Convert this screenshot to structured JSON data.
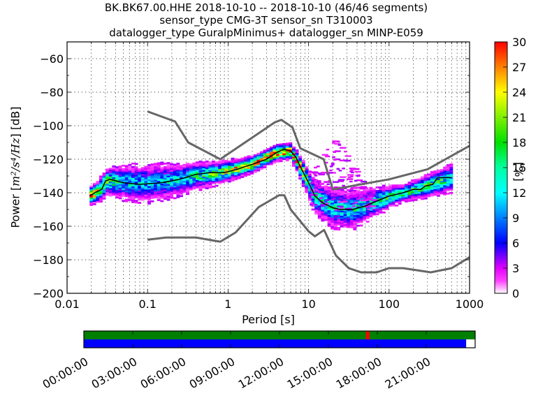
{
  "title": {
    "line1": "BK.BK67.00.HHE   2018-10-10 -- 2018-10-10  (46/46 segments)",
    "line2": "sensor_type CMG-3T sensor_sn T310003",
    "line3": "datalogger_type GuralpMinimus+ datalogger_sn MINP-E059"
  },
  "chart_data": {
    "type": "heatmap",
    "title": "BK.BK67.00.HHE   2018-10-10 -- 2018-10-10  (46/46 segments)",
    "xlabel": "Period [s]",
    "ylabel_prefix": "Power [",
    "ylabel_math": "m²/s⁴/Hz",
    "ylabel_suffix": "] [dB]",
    "xscale": "log",
    "xlim": [
      0.01,
      1000
    ],
    "ylim": [
      -200,
      -50
    ],
    "xticks": [
      0.01,
      0.1,
      1,
      10,
      100,
      1000
    ],
    "xtick_labels": [
      "0.01",
      "0.1",
      "1",
      "10",
      "100",
      "1000"
    ],
    "yticks": [
      -200,
      -180,
      -160,
      -140,
      -120,
      -100,
      -80,
      -60
    ],
    "ytick_labels": [
      "−200",
      "−180",
      "−160",
      "−140",
      "−120",
      "−100",
      "−80",
      "−60"
    ],
    "grid": true,
    "colorbar": {
      "label": "[%]",
      "range": [
        0,
        30
      ],
      "ticks": [
        0,
        3,
        6,
        9,
        12,
        15,
        18,
        21,
        24,
        27,
        30
      ],
      "colormap": "pqlx"
    },
    "noise_models": [
      {
        "name": "NHNM",
        "color": "#666666",
        "points": [
          [
            0.1,
            -91.5
          ],
          [
            0.22,
            -97.5
          ],
          [
            0.32,
            -110
          ],
          [
            0.8,
            -120
          ],
          [
            3.8,
            -98
          ],
          [
            4.6,
            -96.5
          ],
          [
            6.3,
            -101
          ],
          [
            7.9,
            -113.5
          ],
          [
            15.4,
            -120
          ],
          [
            20,
            -138
          ],
          [
            100,
            -132
          ],
          [
            300,
            -126
          ],
          [
            1000,
            -112
          ]
        ]
      },
      {
        "name": "NLNM",
        "color": "#666666",
        "points": [
          [
            0.1,
            -168
          ],
          [
            0.17,
            -166.7
          ],
          [
            0.4,
            -166.7
          ],
          [
            0.8,
            -169.2
          ],
          [
            1.24,
            -163.7
          ],
          [
            2.4,
            -148.6
          ],
          [
            4.3,
            -141.5
          ],
          [
            5,
            -141.5
          ],
          [
            6,
            -150
          ],
          [
            10,
            -163
          ],
          [
            12,
            -166
          ],
          [
            15.6,
            -162.2
          ],
          [
            21.9,
            -177.5
          ],
          [
            31.6,
            -185
          ],
          [
            45,
            -187.5
          ],
          [
            70,
            -187.5
          ],
          [
            100,
            -185
          ],
          [
            150,
            -185
          ],
          [
            330,
            -187.5
          ],
          [
            600,
            -185
          ],
          [
            1000,
            -178.5
          ]
        ]
      }
    ],
    "mode": {
      "name": "mode",
      "color": "#000000",
      "points": [
        [
          0.019,
          -142
        ],
        [
          0.022,
          -140
        ],
        [
          0.027,
          -138
        ],
        [
          0.03,
          -133
        ],
        [
          0.034,
          -132
        ],
        [
          0.05,
          -134
        ],
        [
          0.08,
          -135
        ],
        [
          0.15,
          -134
        ],
        [
          0.25,
          -132
        ],
        [
          0.4,
          -129
        ],
        [
          0.6,
          -128
        ],
        [
          0.9,
          -128
        ],
        [
          1.3,
          -126
        ],
        [
          2,
          -123
        ],
        [
          3,
          -120
        ],
        [
          4,
          -116
        ],
        [
          5,
          -114
        ],
        [
          6,
          -115
        ],
        [
          7,
          -119
        ],
        [
          8,
          -125
        ],
        [
          10,
          -134
        ],
        [
          12,
          -142
        ],
        [
          15,
          -146
        ],
        [
          20,
          -149
        ],
        [
          25,
          -150
        ],
        [
          35,
          -150
        ],
        [
          50,
          -148
        ],
        [
          70,
          -145
        ],
        [
          100,
          -142
        ],
        [
          150,
          -140
        ],
        [
          200,
          -138
        ],
        [
          250,
          -138
        ],
        [
          280,
          -136
        ],
        [
          350,
          -135
        ],
        [
          400,
          -131
        ],
        [
          500,
          -131
        ],
        [
          600,
          -131
        ]
      ]
    },
    "density_band": [
      {
        "period": 0.019,
        "center": -142,
        "spread": 3,
        "peak": 28
      },
      {
        "period": 0.025,
        "center": -139,
        "spread": 4,
        "peak": 20
      },
      {
        "period": 0.031,
        "center": -133,
        "spread": 5,
        "peak": 16
      },
      {
        "period": 0.05,
        "center": -134,
        "spread": 6,
        "peak": 12
      },
      {
        "period": 0.1,
        "center": -134,
        "spread": 7,
        "peak": 10
      },
      {
        "period": 0.2,
        "center": -133,
        "spread": 6,
        "peak": 12
      },
      {
        "period": 0.4,
        "center": -130,
        "spread": 5,
        "peak": 14
      },
      {
        "period": 0.8,
        "center": -128,
        "spread": 4,
        "peak": 18
      },
      {
        "period": 2,
        "center": -123,
        "spread": 3,
        "peak": 25
      },
      {
        "period": 4,
        "center": -116,
        "spread": 3,
        "peak": 28
      },
      {
        "period": 6,
        "center": -115,
        "spread": 3,
        "peak": 26
      },
      {
        "period": 8,
        "center": -125,
        "spread": 4,
        "peak": 22
      },
      {
        "period": 12,
        "center": -142,
        "spread": 6,
        "peak": 14
      },
      {
        "period": 20,
        "center": -149,
        "spread": 7,
        "peak": 12
      },
      {
        "period": 35,
        "center": -150,
        "spread": 7,
        "peak": 12
      },
      {
        "period": 70,
        "center": -145,
        "spread": 5,
        "peak": 14
      },
      {
        "period": 150,
        "center": -140,
        "spread": 3,
        "peak": 18
      },
      {
        "period": 300,
        "center": -136,
        "spread": 4,
        "peak": 16
      },
      {
        "period": 600,
        "center": -131,
        "spread": 5,
        "peak": 14
      }
    ],
    "outlier_cloud": {
      "period_range": [
        10,
        60
      ],
      "db_range": [
        -150,
        -105
      ],
      "level": 2
    }
  },
  "timeline": {
    "ticks": [
      "00:00:00",
      "03:00:00",
      "06:00:00",
      "09:00:00",
      "12:00:00",
      "15:00:00",
      "18:00:00",
      "21:00:00"
    ],
    "data_coverage_fraction": 0.977,
    "gap_marker_hours": 17.3,
    "colors": {
      "coverage": "#007f00",
      "used": "#0000ff",
      "gap": "#ff0000"
    }
  }
}
